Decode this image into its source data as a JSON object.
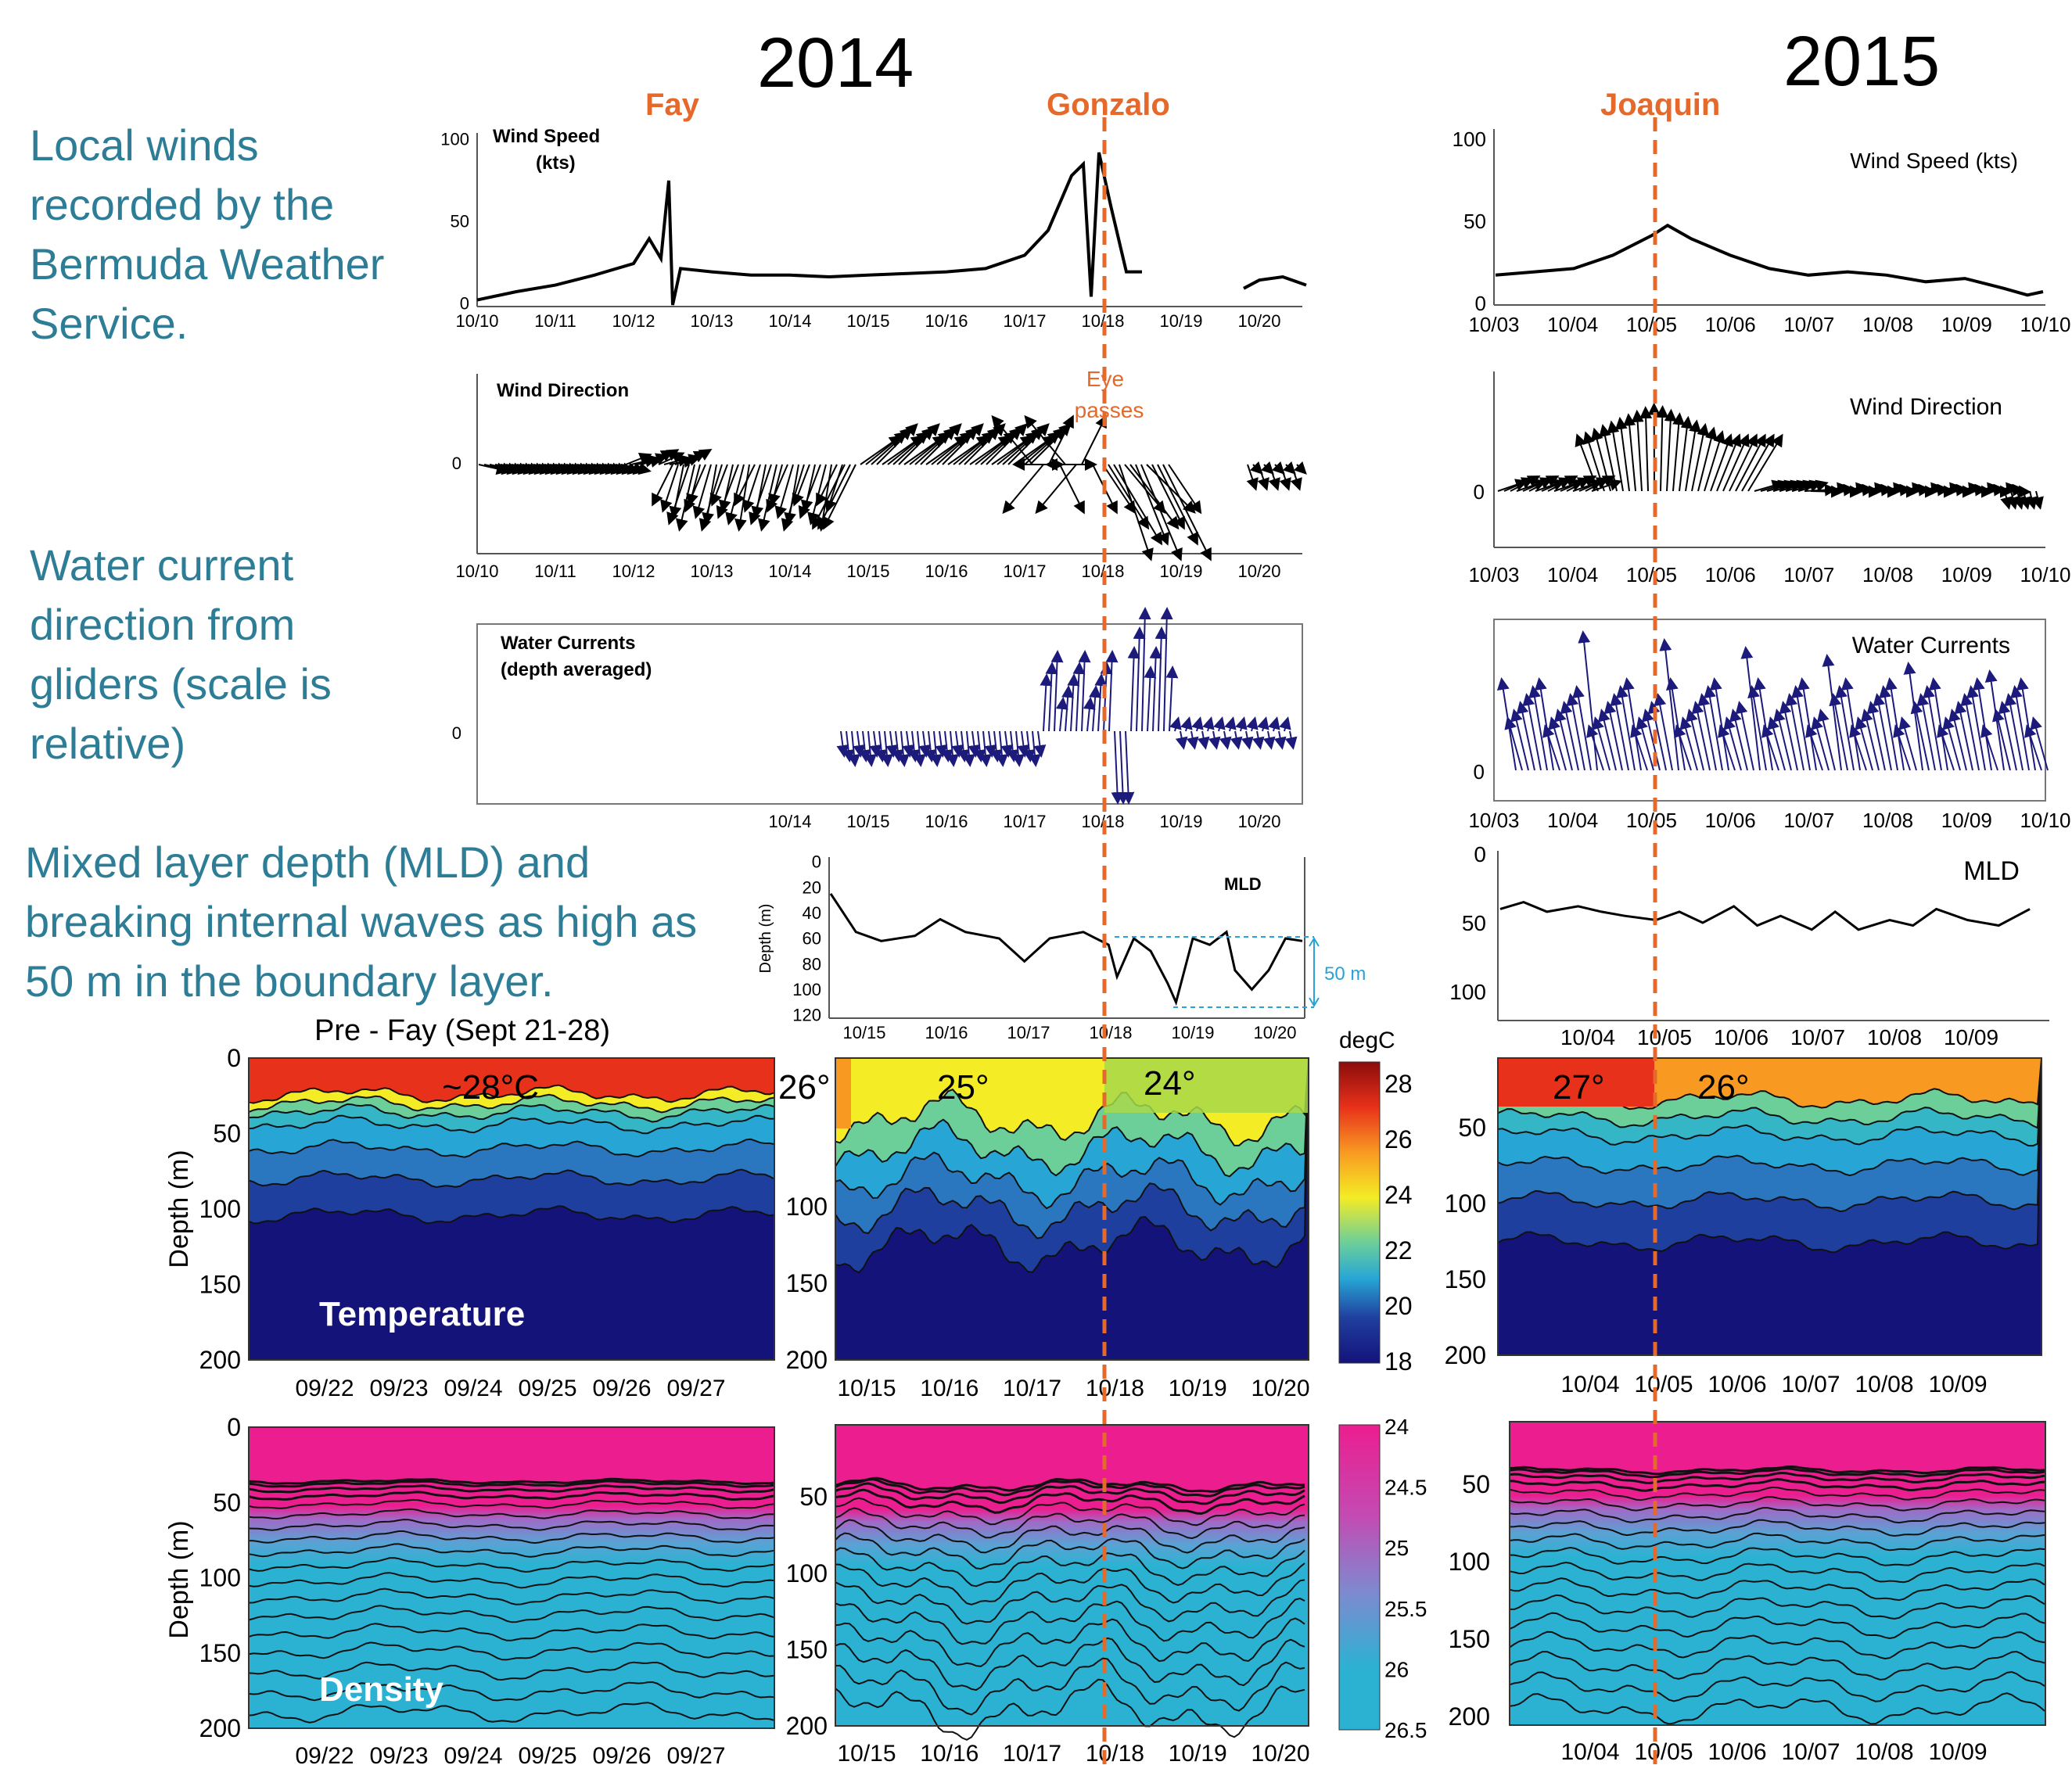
{
  "notes": {
    "winds": "Local winds recorded by the Bermuda Weather Service.",
    "currents": "Water current direction from gliders (scale is relative)",
    "mld": "Mixed layer depth (MLD) and breaking internal waves as high as 50 m in the boundary layer."
  },
  "years": {
    "y2014": "2014",
    "y2015": "2015"
  },
  "storms": {
    "fay": "Fay",
    "gonzalo": "Gonzalo",
    "joaquin": "Joaquin"
  },
  "annotations": {
    "eye_line1": "Eye",
    "eye_line2": "passes",
    "mld_range": "50 m",
    "pre_fay": "Pre - Fay (Sept 21-28)",
    "t_pre": "~28°C",
    "t_26a": "26°",
    "t_25": "25°",
    "t_24": "24°",
    "t_27": "27°",
    "t_26b": "26°",
    "temperature": "Temperature",
    "density": "Density",
    "degc": "degC",
    "mld": "MLD"
  },
  "colors": {
    "accent_orange": "#e4692a",
    "note_blue": "#2e7d96",
    "vector_blue": "#1c1a7a",
    "temp_scale": [
      "#14137a",
      "#1f3f9e",
      "#27a6d6",
      "#6ccf9a",
      "#f4ec24",
      "#f89a22",
      "#e8311a",
      "#8b0c0c"
    ],
    "density_scale": [
      "#ec1d8f",
      "#a661c2",
      "#4fa9d3",
      "#2bb2d2"
    ]
  },
  "chart_data": [
    {
      "type": "line",
      "id": "wind_speed_2014",
      "label_line1": "Wind Speed",
      "label_line2": "(kts)",
      "x": [
        "10/10",
        "10/11",
        "10/12",
        "10/13",
        "10/14",
        "10/15",
        "10/16",
        "10/17",
        "10/18",
        "10/19",
        "10/20"
      ],
      "ylim": [
        0,
        100
      ],
      "yticks": [
        "0",
        "50",
        "100"
      ],
      "points": [
        [
          0,
          3
        ],
        [
          0.5,
          8
        ],
        [
          1,
          12
        ],
        [
          1.5,
          18
        ],
        [
          2,
          25
        ],
        [
          2.2,
          40
        ],
        [
          2.35,
          28
        ],
        [
          2.45,
          75
        ],
        [
          2.5,
          0
        ],
        [
          2.6,
          22
        ],
        [
          3,
          20
        ],
        [
          3.5,
          18
        ],
        [
          4,
          18
        ],
        [
          4.5,
          17
        ],
        [
          5,
          18
        ],
        [
          5.5,
          19
        ],
        [
          6,
          20
        ],
        [
          6.5,
          22
        ],
        [
          7,
          30
        ],
        [
          7.3,
          45
        ],
        [
          7.6,
          78
        ],
        [
          7.75,
          85
        ],
        [
          7.85,
          5
        ],
        [
          7.95,
          92
        ],
        [
          8.1,
          60
        ],
        [
          8.3,
          20
        ],
        [
          8.5,
          20
        ],
        [
          null,
          null
        ],
        [
          9.8,
          10
        ],
        [
          10,
          15
        ],
        [
          10.3,
          17
        ],
        [
          10.6,
          12
        ]
      ]
    },
    {
      "type": "vector",
      "id": "wind_dir_2014",
      "label": "Wind Direction",
      "x": [
        "10/10",
        "10/11",
        "10/12",
        "10/13",
        "10/14",
        "10/15",
        "10/16",
        "10/17",
        "10/18",
        "10/19",
        "10/20"
      ],
      "yticks": [
        "0"
      ]
    },
    {
      "type": "vector",
      "id": "currents_2014",
      "label_line1": "Water Currents",
      "label_line2": "(depth averaged)",
      "x": [
        "10/14",
        "10/15",
        "10/16",
        "10/17",
        "10/18",
        "10/19",
        "10/20"
      ],
      "yticks": [
        "0"
      ]
    },
    {
      "type": "line",
      "id": "mld_2014",
      "label": "MLD",
      "ylabel": "Depth (m)",
      "x": [
        "10/15",
        "10/16",
        "10/17",
        "10/18",
        "10/19",
        "10/20"
      ],
      "ylim": [
        0,
        120
      ],
      "yticks": [
        "0",
        "20",
        "40",
        "60",
        "80",
        "100",
        "120"
      ],
      "points": [
        [
          0,
          25
        ],
        [
          0.3,
          55
        ],
        [
          0.6,
          62
        ],
        [
          1,
          58
        ],
        [
          1.3,
          45
        ],
        [
          1.6,
          55
        ],
        [
          2,
          60
        ],
        [
          2.3,
          78
        ],
        [
          2.6,
          60
        ],
        [
          3,
          55
        ],
        [
          3.3,
          65
        ],
        [
          3.4,
          90
        ],
        [
          3.6,
          60
        ],
        [
          3.8,
          70
        ],
        [
          4,
          95
        ],
        [
          4.1,
          110
        ],
        [
          4.3,
          60
        ],
        [
          4.5,
          65
        ],
        [
          4.7,
          55
        ],
        [
          4.8,
          85
        ],
        [
          5,
          100
        ],
        [
          5.2,
          85
        ],
        [
          5.4,
          60
        ],
        [
          5.6,
          62
        ]
      ]
    },
    {
      "type": "line",
      "id": "wind_speed_2015",
      "label": "Wind Speed (kts)",
      "x": [
        "10/03",
        "10/04",
        "10/05",
        "10/06",
        "10/07",
        "10/08",
        "10/09",
        "10/10"
      ],
      "ylim": [
        0,
        100
      ],
      "yticks": [
        "0",
        "50",
        "100"
      ],
      "points": [
        [
          0,
          18
        ],
        [
          0.5,
          20
        ],
        [
          1,
          22
        ],
        [
          1.5,
          30
        ],
        [
          2,
          42
        ],
        [
          2.2,
          48
        ],
        [
          2.5,
          40
        ],
        [
          3,
          30
        ],
        [
          3.5,
          22
        ],
        [
          4,
          18
        ],
        [
          4.5,
          20
        ],
        [
          5,
          18
        ],
        [
          5.5,
          14
        ],
        [
          6,
          16
        ],
        [
          6.5,
          10
        ],
        [
          6.8,
          6
        ],
        [
          7,
          8
        ]
      ]
    },
    {
      "type": "vector",
      "id": "wind_dir_2015",
      "label": "Wind Direction",
      "x": [
        "10/03",
        "10/04",
        "10/05",
        "10/06",
        "10/07",
        "10/08",
        "10/09",
        "10/10"
      ],
      "yticks": [
        "0"
      ]
    },
    {
      "type": "vector",
      "id": "currents_2015",
      "label": "Water Currents",
      "x": [
        "10/03",
        "10/04",
        "10/05",
        "10/06",
        "10/07",
        "10/08",
        "10/09",
        "10/10"
      ],
      "yticks": [
        "0"
      ]
    },
    {
      "type": "line",
      "id": "mld_2015",
      "label": "MLD",
      "x": [
        "10/04",
        "10/05",
        "10/06",
        "10/07",
        "10/08",
        "10/09"
      ],
      "yticks": [
        "0",
        "50",
        "100"
      ],
      "points": [
        [
          0,
          40
        ],
        [
          0.3,
          35
        ],
        [
          0.6,
          42
        ],
        [
          1,
          38
        ],
        [
          1.3,
          42
        ],
        [
          1.6,
          45
        ],
        [
          2,
          48
        ],
        [
          2.3,
          42
        ],
        [
          2.6,
          50
        ],
        [
          3,
          38
        ],
        [
          3.3,
          52
        ],
        [
          3.6,
          45
        ],
        [
          4,
          55
        ],
        [
          4.3,
          42
        ],
        [
          4.6,
          55
        ],
        [
          5,
          48
        ],
        [
          5.3,
          52
        ],
        [
          5.6,
          40
        ],
        [
          6,
          48
        ],
        [
          6.4,
          52
        ],
        [
          6.8,
          40
        ]
      ]
    },
    {
      "type": "heatmap",
      "id": "temp_prefay",
      "ylabel": "Depth (m)",
      "x": [
        "09/22",
        "09/23",
        "09/24",
        "09/25",
        "09/26",
        "09/27"
      ],
      "yticks": [
        "0",
        "50",
        "100",
        "150",
        "200"
      ]
    },
    {
      "type": "heatmap",
      "id": "temp_2014",
      "x": [
        "10/15",
        "10/16",
        "10/17",
        "10/18",
        "10/19",
        "10/20"
      ],
      "yticks": [
        "100",
        "150",
        "200"
      ]
    },
    {
      "type": "heatmap",
      "id": "temp_2015",
      "x": [
        "10/04",
        "10/05",
        "10/06",
        "10/07",
        "10/08",
        "10/09"
      ],
      "yticks": [
        "50",
        "100",
        "150",
        "200"
      ]
    },
    {
      "type": "heatmap",
      "id": "density_prefay",
      "ylabel": "Depth (m)",
      "x": [
        "09/22",
        "09/23",
        "09/24",
        "09/25",
        "09/26",
        "09/27"
      ],
      "yticks": [
        "0",
        "50",
        "100",
        "150",
        "200"
      ]
    },
    {
      "type": "heatmap",
      "id": "density_2014",
      "x": [
        "10/15",
        "10/16",
        "10/17",
        "10/18",
        "10/19",
        "10/20"
      ],
      "yticks": [
        "50",
        "100",
        "150",
        "200"
      ]
    },
    {
      "type": "heatmap",
      "id": "density_2015",
      "x": [
        "10/04",
        "10/05",
        "10/06",
        "10/07",
        "10/08",
        "10/09"
      ],
      "yticks": [
        "50",
        "100",
        "150",
        "200"
      ]
    },
    {
      "type": "colorbar",
      "id": "temp_colorbar",
      "label": "degC",
      "ticks": [
        "28",
        "26",
        "24",
        "22",
        "20",
        "18"
      ]
    },
    {
      "type": "colorbar",
      "id": "density_colorbar",
      "ticks": [
        "24",
        "24.5",
        "25",
        "25.5",
        "26",
        "26.5"
      ]
    }
  ]
}
